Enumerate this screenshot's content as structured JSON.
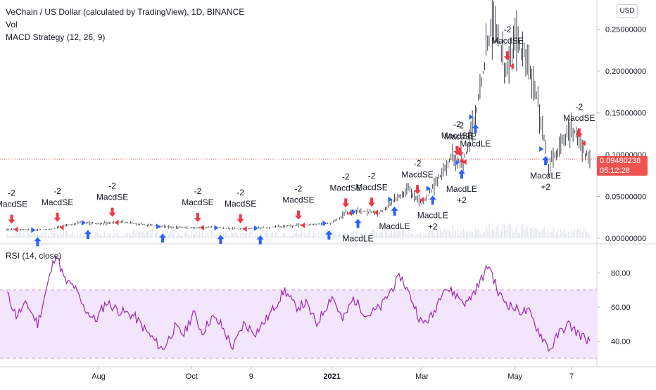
{
  "header": {
    "symbol_line": "VeChain / US Dollar (calculated by TradingView), 1D, BINANCE",
    "volume_line": "Vol",
    "strategy_line": "MACD Strategy (12, 26, 9)"
  },
  "currency_button": "USD",
  "last_price": {
    "value": "0.09480238",
    "countdown": "05:12:28",
    "color": "#ef5350"
  },
  "rsi_title": "RSI (14, close)",
  "colors": {
    "long": "#2962ff",
    "short": "#f23645",
    "rsi": "#9c27b0",
    "band_fill": "#f3e5fb",
    "price_line": "#f23645"
  },
  "chart_data": [
    {
      "type": "ohlc-bar",
      "ylim": [
        0,
        0.285
      ],
      "y_ticks": [
        "0.25000000",
        "0.20000000",
        "0.15000000",
        "0.10000000",
        "0.05000000",
        "0.00000000"
      ],
      "y_tick_values": [
        0.25,
        0.2,
        0.15,
        0.1,
        0.05,
        0.0
      ],
      "x_tick_labels": [
        "Aug",
        "Oct",
        "9",
        "2021",
        "Mar",
        "May",
        "7"
      ],
      "x_ticks": [
        "2020-08-01",
        "2020-10-01",
        "2020-11-09",
        "2021-01-01",
        "2021-03-01",
        "2021-05-01",
        "2021-06-07"
      ],
      "x_range": [
        "2020-06-02",
        "2021-06-19"
      ],
      "price_points": [
        [
          "2020-06-08",
          0.0105
        ],
        [
          "2020-06-20",
          0.0095
        ],
        [
          "2020-07-01",
          0.011
        ],
        [
          "2020-07-10",
          0.015
        ],
        [
          "2020-07-20",
          0.019
        ],
        [
          "2020-08-01",
          0.0175
        ],
        [
          "2020-08-15",
          0.0195
        ],
        [
          "2020-09-01",
          0.016
        ],
        [
          "2020-09-15",
          0.0135
        ],
        [
          "2020-10-01",
          0.0125
        ],
        [
          "2020-10-15",
          0.013
        ],
        [
          "2020-11-01",
          0.011
        ],
        [
          "2020-11-15",
          0.012
        ],
        [
          "2020-12-01",
          0.0145
        ],
        [
          "2020-12-15",
          0.016
        ],
        [
          "2021-01-01",
          0.018
        ],
        [
          "2021-01-10",
          0.03
        ],
        [
          "2021-01-20",
          0.032
        ],
        [
          "2021-02-01",
          0.03
        ],
        [
          "2021-02-10",
          0.045
        ],
        [
          "2021-02-20",
          0.058
        ],
        [
          "2021-03-01",
          0.04
        ],
        [
          "2021-03-10",
          0.065
        ],
        [
          "2021-03-20",
          0.095
        ],
        [
          "2021-03-28",
          0.09
        ],
        [
          "2021-04-05",
          0.145
        ],
        [
          "2021-04-12",
          0.22
        ],
        [
          "2021-04-17",
          0.265
        ],
        [
          "2021-04-25",
          0.2
        ],
        [
          "2021-05-01",
          0.235
        ],
        [
          "2021-05-10",
          0.21
        ],
        [
          "2021-05-17",
          0.15
        ],
        [
          "2021-05-23",
          0.085
        ],
        [
          "2021-05-30",
          0.11
        ],
        [
          "2021-06-07",
          0.135
        ],
        [
          "2021-06-14",
          0.105
        ],
        [
          "2021-06-19",
          0.0948
        ]
      ],
      "last_price": 0.09480238,
      "signals": [
        {
          "date": "2020-06-05",
          "side": "short",
          "label": "MacdSE",
          "qty": "-2"
        },
        {
          "date": "2020-06-22",
          "side": "long",
          "label": "",
          "qty": ""
        },
        {
          "date": "2020-07-05",
          "side": "short",
          "label": "MacdSE",
          "qty": "-2"
        },
        {
          "date": "2020-07-25",
          "side": "long",
          "label": "",
          "qty": ""
        },
        {
          "date": "2020-08-10",
          "side": "short",
          "label": "MacdSE",
          "qty": "-2"
        },
        {
          "date": "2020-09-12",
          "side": "long",
          "label": "",
          "qty": ""
        },
        {
          "date": "2020-10-05",
          "side": "short",
          "label": "MacdSE",
          "qty": "-2"
        },
        {
          "date": "2020-10-20",
          "side": "long",
          "label": "",
          "qty": ""
        },
        {
          "date": "2020-11-02",
          "side": "short",
          "label": "MacdSE",
          "qty": "-2"
        },
        {
          "date": "2020-11-15",
          "side": "long",
          "label": "",
          "qty": ""
        },
        {
          "date": "2020-12-10",
          "side": "short",
          "label": "MacdSE",
          "qty": "-2"
        },
        {
          "date": "2020-12-30",
          "side": "long",
          "label": "",
          "qty": ""
        },
        {
          "date": "2021-01-10",
          "side": "short",
          "label": "MacdSE",
          "qty": "-2"
        },
        {
          "date": "2021-01-18",
          "side": "long",
          "label": "MacdLE",
          "qty": ""
        },
        {
          "date": "2021-01-27",
          "side": "short",
          "label": "MacdSE",
          "qty": "-2"
        },
        {
          "date": "2021-02-11",
          "side": "long",
          "label": "MacdLE",
          "qty": ""
        },
        {
          "date": "2021-02-26",
          "side": "short",
          "label": "MacdSE",
          "qty": "-2"
        },
        {
          "date": "2021-03-08",
          "side": "long",
          "label": "MacdLE",
          "qty": "+2"
        },
        {
          "date": "2021-03-24",
          "side": "short",
          "label": "MacdSE",
          "qty": "-2"
        },
        {
          "date": "2021-03-26",
          "side": "short",
          "label": "MacdSE",
          "qty": "-2"
        },
        {
          "date": "2021-03-27",
          "side": "long",
          "label": "MacdLE",
          "qty": "+2"
        },
        {
          "date": "2021-04-05",
          "side": "long",
          "label": "MacdLE",
          "qty": ""
        },
        {
          "date": "2021-04-26",
          "side": "short",
          "label": "MacdSE",
          "qty": "-2"
        },
        {
          "date": "2021-05-21",
          "side": "long",
          "label": "MacdLE",
          "qty": "+2"
        },
        {
          "date": "2021-06-12",
          "side": "short",
          "label": "MacdSE",
          "qty": "-2"
        }
      ]
    },
    {
      "type": "line",
      "name": "RSI (14, close)",
      "ylim": [
        25,
        95
      ],
      "y_ticks": [
        "80.00",
        "60.00",
        "40.00"
      ],
      "y_tick_values": [
        80,
        60,
        40
      ],
      "bands": [
        30,
        70
      ],
      "x_range": [
        "2020-06-02",
        "2021-06-19"
      ],
      "points": [
        [
          "2020-06-02",
          68
        ],
        [
          "2020-06-08",
          55
        ],
        [
          "2020-06-15",
          62
        ],
        [
          "2020-06-22",
          50
        ],
        [
          "2020-06-30",
          78
        ],
        [
          "2020-07-04",
          92
        ],
        [
          "2020-07-10",
          75
        ],
        [
          "2020-07-16",
          72
        ],
        [
          "2020-07-22",
          60
        ],
        [
          "2020-07-30",
          52
        ],
        [
          "2020-08-06",
          63
        ],
        [
          "2020-08-14",
          58
        ],
        [
          "2020-08-24",
          55
        ],
        [
          "2020-09-02",
          45
        ],
        [
          "2020-09-12",
          35
        ],
        [
          "2020-09-20",
          48
        ],
        [
          "2020-09-26",
          44
        ],
        [
          "2020-10-02",
          57
        ],
        [
          "2020-10-08",
          45
        ],
        [
          "2020-10-14",
          54
        ],
        [
          "2020-10-20",
          50
        ],
        [
          "2020-10-28",
          36
        ],
        [
          "2020-11-04",
          50
        ],
        [
          "2020-11-12",
          45
        ],
        [
          "2020-11-20",
          54
        ],
        [
          "2020-12-01",
          70
        ],
        [
          "2020-12-08",
          60
        ],
        [
          "2020-12-15",
          62
        ],
        [
          "2020-12-22",
          50
        ],
        [
          "2021-01-01",
          67
        ],
        [
          "2021-01-08",
          52
        ],
        [
          "2021-01-15",
          65
        ],
        [
          "2021-01-24",
          55
        ],
        [
          "2021-02-02",
          60
        ],
        [
          "2021-02-10",
          72
        ],
        [
          "2021-02-15",
          78
        ],
        [
          "2021-02-22",
          65
        ],
        [
          "2021-03-01",
          50
        ],
        [
          "2021-03-08",
          55
        ],
        [
          "2021-03-15",
          72
        ],
        [
          "2021-03-22",
          68
        ],
        [
          "2021-03-30",
          62
        ],
        [
          "2021-04-07",
          73
        ],
        [
          "2021-04-14",
          85
        ],
        [
          "2021-04-20",
          68
        ],
        [
          "2021-04-26",
          62
        ],
        [
          "2021-05-03",
          58
        ],
        [
          "2021-05-10",
          57
        ],
        [
          "2021-05-17",
          45
        ],
        [
          "2021-05-24",
          35
        ],
        [
          "2021-05-30",
          45
        ],
        [
          "2021-06-05",
          50
        ],
        [
          "2021-06-12",
          44
        ],
        [
          "2021-06-19",
          40
        ]
      ]
    }
  ]
}
